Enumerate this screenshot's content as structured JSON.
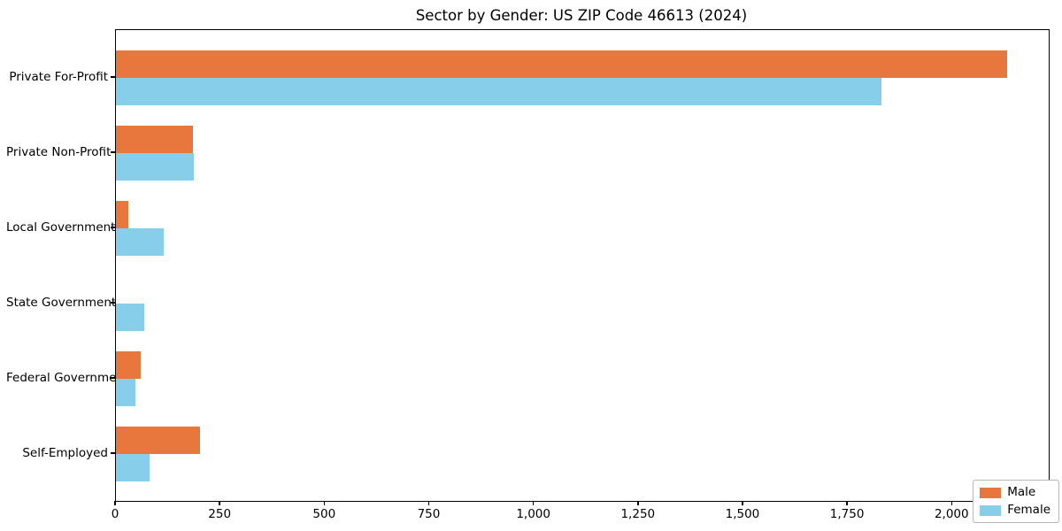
{
  "title": "Sector by Gender: US ZIP Code 46613 (2024)",
  "chart_data": {
    "type": "bar",
    "orientation": "horizontal",
    "title": "Sector by Gender: US ZIP Code 46613 (2024)",
    "categories": [
      "Private For-Profit",
      "Private Non-Profit",
      "Local Government",
      "State Government",
      "Federal Government",
      "Self-Employed"
    ],
    "series": [
      {
        "name": "Male",
        "color": "#e8773d",
        "values": [
          2130,
          185,
          30,
          0,
          60,
          200
        ]
      },
      {
        "name": "Female",
        "color": "#87ceeb",
        "values": [
          1830,
          187,
          114,
          68,
          46,
          80
        ]
      }
    ],
    "xlabel": "",
    "ylabel": "",
    "xlim": [
      0,
      2230
    ],
    "x_ticks": [
      0,
      250,
      500,
      750,
      1000,
      1250,
      1500,
      1750,
      2000
    ],
    "x_tick_labels": [
      "0",
      "250",
      "500",
      "750",
      "1,000",
      "1,250",
      "1,500",
      "1,750",
      "2,000"
    ],
    "grid": false,
    "legend_position": "lower right",
    "background_color": "#ffffff",
    "spine_color": "#000000"
  },
  "legend": {
    "items": [
      {
        "label": "Male",
        "color": "#e8773d"
      },
      {
        "label": "Female",
        "color": "#87ceeb"
      }
    ]
  }
}
